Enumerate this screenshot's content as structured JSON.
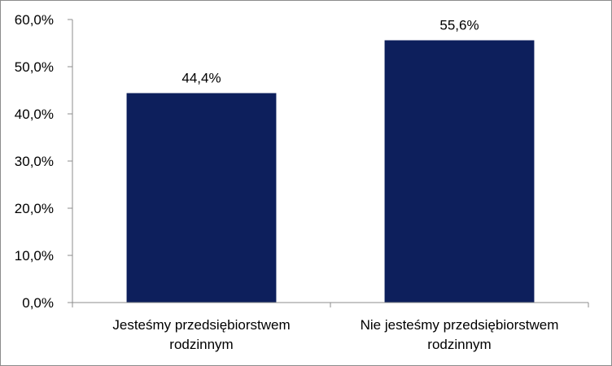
{
  "chart_data": {
    "type": "bar",
    "title": "",
    "xlabel": "",
    "ylabel": "",
    "ylim": [
      0,
      60
    ],
    "yticks": [
      0,
      10,
      20,
      30,
      40,
      50,
      60
    ],
    "ytick_labels": [
      "0,0%",
      "10,0%",
      "20,0%",
      "30,0%",
      "40,0%",
      "50,0%",
      "60,0%"
    ],
    "categories": [
      [
        "Jesteśmy przedsiębiorstwem",
        "rodzinnym"
      ],
      [
        "Nie jesteśmy przedsiębiorstwem",
        "rodzinnym"
      ]
    ],
    "values": [
      44.4,
      55.6
    ],
    "value_labels": [
      "44,4%",
      "55,6%"
    ],
    "bar_color": "#0d1f5c",
    "grid": false,
    "legend": "none"
  }
}
